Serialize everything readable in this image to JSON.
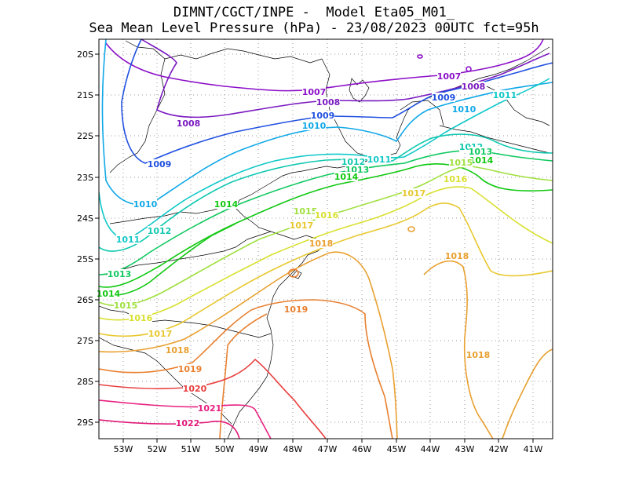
{
  "title_line1": "DIMNT/CGCT/INPE -  Model Eta05_M01_",
  "title_line2": "Sea Mean Level Pressure (hPa) - 23/08/2023 00UTC fct=95h",
  "lon_ticks": [
    "53W",
    "52W",
    "51W",
    "50W",
    "49W",
    "48W",
    "47W",
    "46W",
    "45W",
    "44W",
    "43W",
    "42W",
    "41W"
  ],
  "lat_ticks": [
    "20S",
    "21S",
    "22S",
    "23S",
    "24S",
    "25S",
    "26S",
    "27S",
    "28S",
    "29S"
  ],
  "colors": {
    "1007": "#8c10c8",
    "1008": "#7a1ac0",
    "1009": "#2050e0",
    "1010": "#10a8e8",
    "1011": "#10c8c8",
    "1012": "#10c8b0",
    "1013": "#10c860",
    "1014": "#10c810",
    "1015": "#a0e040",
    "1016": "#d8e030",
    "1017": "#e8c830",
    "1018": "#e8a030",
    "1019": "#e88030",
    "1020": "#e84040",
    "1021": "#e82080",
    "1022": "#e01878"
  },
  "contour_labels": [
    {
      "text": "1007",
      "level": "1007"
    },
    {
      "text": "1007",
      "level": "1007"
    },
    {
      "text": "1008",
      "level": "1008"
    },
    {
      "text": "1008",
      "level": "1008"
    },
    {
      "text": "1008",
      "level": "1008"
    },
    {
      "text": "1009",
      "level": "1009"
    },
    {
      "text": "1009",
      "level": "1009"
    },
    {
      "text": "1009",
      "level": "1009"
    },
    {
      "text": "1010",
      "level": "1010"
    },
    {
      "text": "1010",
      "level": "1010"
    },
    {
      "text": "1010",
      "level": "1010"
    },
    {
      "text": "1011",
      "level": "1011"
    },
    {
      "text": "1011",
      "level": "1011"
    },
    {
      "text": "1011",
      "level": "1011"
    },
    {
      "text": "1012",
      "level": "1012"
    },
    {
      "text": "1012",
      "level": "1012"
    },
    {
      "text": "1012",
      "level": "1012"
    },
    {
      "text": "1013",
      "level": "1013"
    },
    {
      "text": "1013",
      "level": "1013"
    },
    {
      "text": "1013",
      "level": "1013"
    },
    {
      "text": "1014",
      "level": "1014"
    },
    {
      "text": "1014",
      "level": "1014"
    },
    {
      "text": "1014",
      "level": "1014"
    },
    {
      "text": "1014",
      "level": "1014"
    },
    {
      "text": "1015",
      "level": "1015"
    },
    {
      "text": "1015",
      "level": "1015"
    },
    {
      "text": "1015",
      "level": "1015"
    },
    {
      "text": "1016",
      "level": "1016"
    },
    {
      "text": "1016",
      "level": "1016"
    },
    {
      "text": "1016",
      "level": "1016"
    },
    {
      "text": "1017",
      "level": "1017"
    },
    {
      "text": "1017",
      "level": "1017"
    },
    {
      "text": "1017",
      "level": "1017"
    },
    {
      "text": "1018",
      "level": "1018"
    },
    {
      "text": "1018",
      "level": "1018"
    },
    {
      "text": "1018",
      "level": "1018"
    },
    {
      "text": "1018",
      "level": "1018"
    },
    {
      "text": "1019",
      "level": "1019"
    },
    {
      "text": "1019",
      "level": "1019"
    },
    {
      "text": "1020",
      "level": "1020"
    },
    {
      "text": "1021",
      "level": "1021"
    },
    {
      "text": "1022",
      "level": "1022"
    }
  ]
}
